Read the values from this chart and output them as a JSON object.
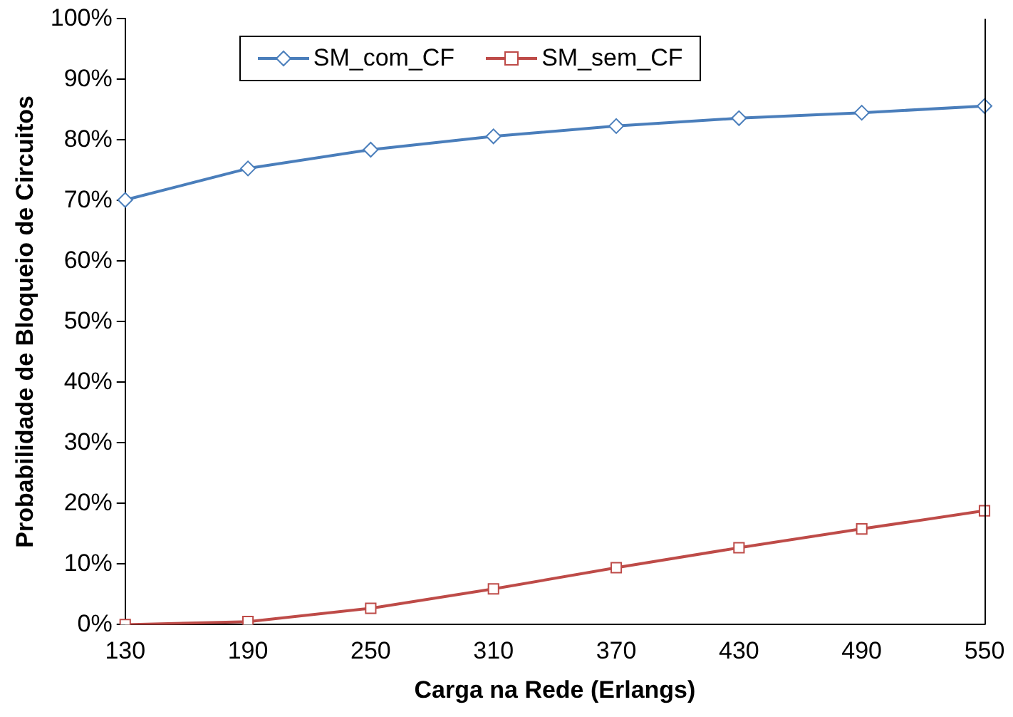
{
  "chart_data": {
    "type": "line",
    "xlabel": "Carga na Rede (Erlangs)",
    "ylabel": "Probabilidade de Bloqueio de Circuitos",
    "categories": [
      "130",
      "190",
      "250",
      "310",
      "370",
      "430",
      "490",
      "550"
    ],
    "series": [
      {
        "name": "SM_com_CF",
        "color": "#4a7ebb",
        "marker": "diamond",
        "values": [
          70.1,
          75.3,
          78.4,
          80.6,
          82.3,
          83.6,
          84.5,
          85.6
        ]
      },
      {
        "name": "SM_sem_CF",
        "color": "#be4b48",
        "marker": "square",
        "values": [
          0,
          0.5,
          2.7,
          5.9,
          9.4,
          12.7,
          15.8,
          18.8
        ]
      }
    ],
    "ylim": [
      0,
      100
    ],
    "yticks": [
      {
        "value": 0,
        "label": "0%"
      },
      {
        "value": 10,
        "label": "10%"
      },
      {
        "value": 20,
        "label": "20%"
      },
      {
        "value": 30,
        "label": "30%"
      },
      {
        "value": 40,
        "label": "40%"
      },
      {
        "value": 50,
        "label": "50%"
      },
      {
        "value": 60,
        "label": "60%"
      },
      {
        "value": 70,
        "label": "70%"
      },
      {
        "value": 80,
        "label": "80%"
      },
      {
        "value": 90,
        "label": "90%"
      },
      {
        "value": 100,
        "label": "100%"
      }
    ],
    "grid": false,
    "legend": "top left",
    "line_style": "solid"
  }
}
